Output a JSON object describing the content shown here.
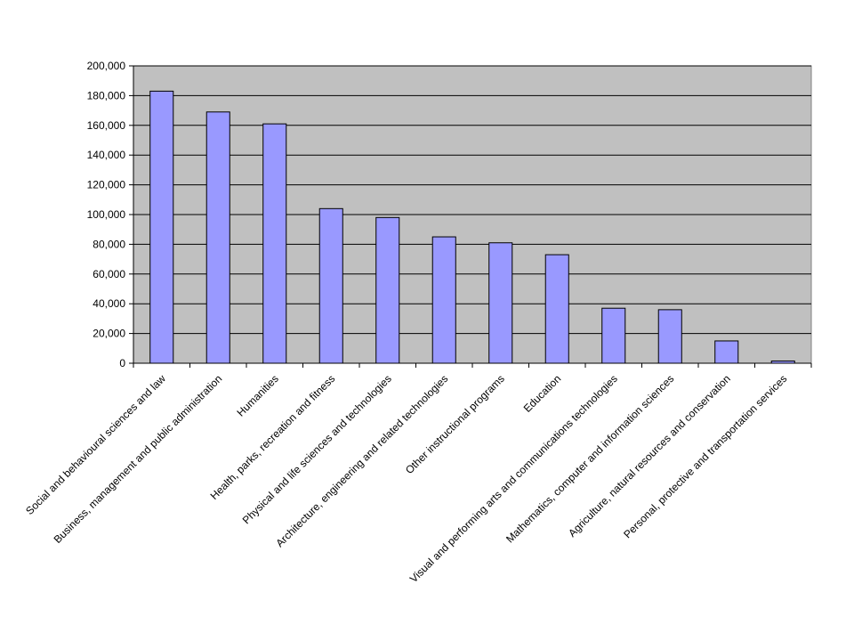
{
  "chart_data": {
    "type": "bar",
    "title": "",
    "xlabel": "",
    "ylabel": "",
    "ylim": [
      0,
      200000
    ],
    "yticks": [
      0,
      20000,
      40000,
      60000,
      80000,
      100000,
      120000,
      140000,
      160000,
      180000,
      200000
    ],
    "ytick_labels": [
      "0",
      "20,000",
      "40,000",
      "60,000",
      "80,000",
      "100,000",
      "120,000",
      "140,000",
      "160,000",
      "180,000",
      "200,000"
    ],
    "grid": true,
    "legend": "none",
    "categories": [
      "Social and behavioural sciences and law",
      "Business, management and public administration",
      "Humanities",
      "Health, parks, recreation and fitness",
      "Physical and life sciences and technologies",
      "Architecture, engineering and related technologies",
      "Other instructional programs",
      "Education",
      "Visual and performing arts and communications technologies",
      "Mathematics, computer and information sciences",
      "Agriculture, natural resources and conservation",
      "Personal, protective and transportation services"
    ],
    "values": [
      183000,
      169000,
      161000,
      104000,
      98000,
      85000,
      81000,
      73000,
      37000,
      36000,
      15000,
      1500
    ],
    "colors": {
      "bar_fill": "#9999ff",
      "bar_stroke": "#000000",
      "plot_background": "#c0c0c0",
      "gridline": "#000000"
    }
  }
}
